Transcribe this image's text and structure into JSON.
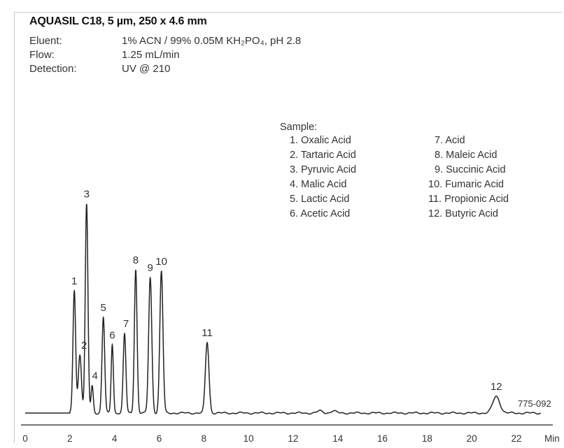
{
  "header": {
    "title": "AQUASIL C18, 5 µm, 250 x 4.6 mm",
    "conditions": [
      {
        "label": "Eluent:",
        "value": "1% ACN / 99% 0.05M KH₂PO₄, pH 2.8"
      },
      {
        "label": "Flow:",
        "value": "1.25 mL/min"
      },
      {
        "label": "Detection:",
        "value": "UV @ 210"
      }
    ]
  },
  "sample": {
    "heading": "Sample:",
    "left": [
      "1. Oxalic Acid",
      "2. Tartaric Acid",
      "3. Pyruvic Acid",
      "4. Malic Acid",
      "5. Lactic Acid",
      "6. Acetic Acid"
    ],
    "right": [
      "7. Acid",
      "8. Maleic Acid",
      "9. Succinic Acid",
      "10. Fumaric Acid",
      "11. Propionic Acid",
      "12. Butyric Acid"
    ]
  },
  "figure_code": "775-092",
  "chart_data": {
    "type": "line",
    "xlabel": "Min",
    "ylabel": "",
    "xlim": [
      0,
      23.5
    ],
    "x_ticks": [
      0,
      2,
      4,
      6,
      8,
      10,
      12,
      14,
      16,
      18,
      20,
      22
    ],
    "baseline": 0,
    "peaks": [
      {
        "label": "1",
        "rt": 2.2,
        "height": 0.59,
        "width": 0.06
      },
      {
        "label": "2",
        "rt": 2.45,
        "height": 0.28,
        "width": 0.07
      },
      {
        "label": "3",
        "rt": 2.75,
        "height": 1.0,
        "width": 0.06
      },
      {
        "label": "4",
        "rt": 3.0,
        "height": 0.13,
        "width": 0.05
      },
      {
        "label": "5",
        "rt": 3.5,
        "height": 0.46,
        "width": 0.06
      },
      {
        "label": "6",
        "rt": 3.9,
        "height": 0.33,
        "width": 0.05
      },
      {
        "label": "7",
        "rt": 4.45,
        "height": 0.38,
        "width": 0.06
      },
      {
        "label": "8",
        "rt": 4.95,
        "height": 0.69,
        "width": 0.06
      },
      {
        "label": "9",
        "rt": 5.6,
        "height": 0.65,
        "width": 0.07
      },
      {
        "label": "10",
        "rt": 6.1,
        "height": 0.68,
        "width": 0.07
      },
      {
        "label": "11",
        "rt": 8.15,
        "height": 0.34,
        "width": 0.08
      },
      {
        "label": "12",
        "rt": 21.1,
        "height": 0.08,
        "width": 0.16
      }
    ],
    "minor_bumps": [
      {
        "rt": 13.2,
        "height": 0.01,
        "width": 0.12
      },
      {
        "rt": 13.8,
        "height": 0.01,
        "width": 0.12
      }
    ]
  }
}
